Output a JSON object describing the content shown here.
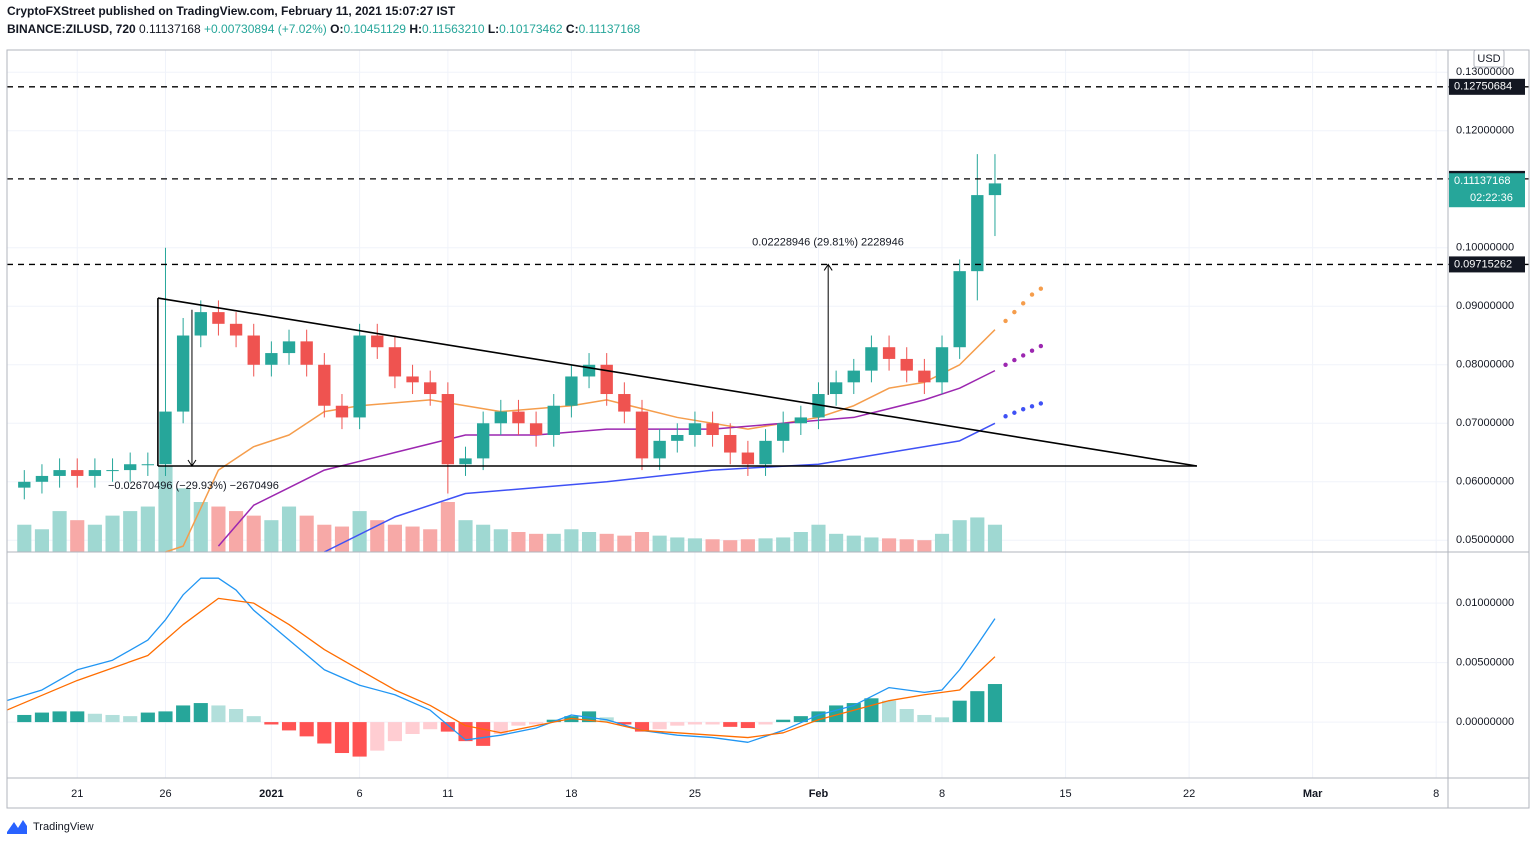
{
  "header": {
    "publisher": "CryptoFXStreet published on TradingView.com, February 11, 2021 15:07:27 IST",
    "symbol": "BINANCE:ZILUSD, 720",
    "last": "0.11137168",
    "change": "+0.00730894 (+7.02%)",
    "ohlc": [
      {
        "label": "O:",
        "value": "0.10451129"
      },
      {
        "label": "H:",
        "value": "0.11563210"
      },
      {
        "label": "L:",
        "value": "0.10173462"
      },
      {
        "label": "C:",
        "value": "0.11137168"
      }
    ]
  },
  "chart_data": [
    {
      "type": "candlestick",
      "currency": "USD",
      "up_color": "#26a69a",
      "down_color": "#ef5350",
      "x": [
        -3,
        -2,
        -1,
        0,
        1,
        2,
        3,
        4,
        5,
        6,
        7,
        8,
        9,
        10,
        11,
        12,
        13,
        14,
        15,
        16,
        17,
        18,
        19,
        20,
        21,
        22,
        23,
        24,
        25,
        26,
        27,
        28,
        29,
        30,
        31,
        32,
        33,
        34,
        35,
        36,
        37,
        38,
        39,
        40,
        41,
        42,
        43,
        44,
        45,
        46,
        47,
        48,
        49,
        50,
        51,
        52
      ],
      "open": [
        0.059,
        0.06,
        0.061,
        0.062,
        0.061,
        0.062,
        0.062,
        0.063,
        0.063,
        0.072,
        0.085,
        0.089,
        0.087,
        0.085,
        0.08,
        0.082,
        0.084,
        0.08,
        0.073,
        0.071,
        0.085,
        0.083,
        0.078,
        0.077,
        0.075,
        0.063,
        0.064,
        0.07,
        0.072,
        0.07,
        0.068,
        0.073,
        0.078,
        0.08,
        0.075,
        0.072,
        0.064,
        0.067,
        0.068,
        0.07,
        0.068,
        0.065,
        0.063,
        0.067,
        0.07,
        0.071,
        0.075,
        0.077,
        0.079,
        0.083,
        0.081,
        0.079,
        0.077,
        0.083,
        0.096,
        0.109
      ],
      "high": [
        0.062,
        0.063,
        0.064,
        0.064,
        0.064,
        0.064,
        0.065,
        0.065,
        0.1,
        0.088,
        0.091,
        0.091,
        0.089,
        0.087,
        0.084,
        0.086,
        0.086,
        0.082,
        0.075,
        0.087,
        0.087,
        0.085,
        0.08,
        0.079,
        0.077,
        0.066,
        0.072,
        0.074,
        0.074,
        0.072,
        0.075,
        0.08,
        0.082,
        0.082,
        0.077,
        0.074,
        0.069,
        0.07,
        0.072,
        0.072,
        0.07,
        0.067,
        0.069,
        0.072,
        0.073,
        0.077,
        0.079,
        0.081,
        0.085,
        0.085,
        0.083,
        0.081,
        0.085,
        0.098,
        0.116,
        0.116
      ],
      "low": [
        0.057,
        0.058,
        0.059,
        0.059,
        0.059,
        0.06,
        0.06,
        0.061,
        0.061,
        0.07,
        0.083,
        0.085,
        0.083,
        0.078,
        0.078,
        0.08,
        0.078,
        0.071,
        0.069,
        0.069,
        0.081,
        0.076,
        0.075,
        0.073,
        0.058,
        0.061,
        0.062,
        0.068,
        0.068,
        0.066,
        0.066,
        0.071,
        0.076,
        0.073,
        0.07,
        0.062,
        0.062,
        0.065,
        0.066,
        0.066,
        0.063,
        0.061,
        0.061,
        0.065,
        0.068,
        0.069,
        0.073,
        0.075,
        0.077,
        0.079,
        0.077,
        0.075,
        0.075,
        0.081,
        0.091,
        0.102
      ],
      "close": [
        0.06,
        0.061,
        0.062,
        0.061,
        0.062,
        0.062,
        0.063,
        0.063,
        0.072,
        0.085,
        0.089,
        0.087,
        0.085,
        0.08,
        0.082,
        0.084,
        0.08,
        0.073,
        0.071,
        0.085,
        0.083,
        0.078,
        0.077,
        0.075,
        0.063,
        0.064,
        0.07,
        0.072,
        0.07,
        0.068,
        0.073,
        0.078,
        0.08,
        0.075,
        0.072,
        0.064,
        0.067,
        0.068,
        0.07,
        0.068,
        0.065,
        0.063,
        0.067,
        0.07,
        0.071,
        0.075,
        0.077,
        0.079,
        0.083,
        0.081,
        0.079,
        0.077,
        0.083,
        0.096,
        0.109,
        0.111
      ],
      "volume": {
        "up_color": "#9fd8d2",
        "down_color": "#f7a9a7",
        "ylim": [
          0,
          110
        ],
        "values": [
          30,
          25,
          45,
          35,
          30,
          40,
          45,
          50,
          95,
          70,
          55,
          50,
          45,
          40,
          35,
          50,
          40,
          30,
          28,
          45,
          35,
          30,
          28,
          25,
          55,
          35,
          30,
          25,
          22,
          20,
          20,
          25,
          22,
          20,
          18,
          22,
          18,
          16,
          15,
          14,
          13,
          14,
          15,
          16,
          22,
          30,
          20,
          18,
          16,
          15,
          14,
          13,
          20,
          35,
          38,
          30
        ]
      },
      "moving_averages": [
        {
          "color": "#f59d4c",
          "x": [
            5,
            6,
            8,
            10,
            12,
            14,
            16,
            20,
            22,
            24,
            28,
            30,
            34,
            38,
            42,
            44,
            46,
            48,
            50,
            52
          ],
          "values": [
            0.048,
            0.049,
            0.062,
            0.066,
            0.068,
            0.072,
            0.073,
            0.074,
            0.073,
            0.072,
            0.073,
            0.074,
            0.071,
            0.069,
            0.071,
            0.073,
            0.076,
            0.077,
            0.08,
            0.086
          ]
        },
        {
          "color": "#9c27b0",
          "x": [
            8,
            10,
            12,
            14,
            18,
            22,
            26,
            30,
            36,
            40,
            44,
            48,
            50,
            52
          ],
          "values": [
            0.049,
            0.056,
            0.059,
            0.062,
            0.065,
            0.068,
            0.068,
            0.069,
            0.069,
            0.07,
            0.071,
            0.074,
            0.076,
            0.079
          ]
        },
        {
          "color": "#3f51f5",
          "x": [
            14,
            18,
            22,
            26,
            30,
            36,
            42,
            46,
            50,
            52
          ],
          "values": [
            0.048,
            0.054,
            0.058,
            0.059,
            0.06,
            0.062,
            0.063,
            0.065,
            0.067,
            0.07
          ]
        }
      ],
      "projections": [
        {
          "color": "#f59d4c",
          "x": [
            52.6,
            53.1,
            53.6,
            54.1,
            54.6
          ],
          "values": [
            0.0875,
            0.089,
            0.0905,
            0.092,
            0.093
          ]
        },
        {
          "color": "#9c27b0",
          "x": [
            52.6,
            53.1,
            53.6,
            54.1,
            54.6
          ],
          "values": [
            0.08,
            0.0808,
            0.0816,
            0.0824,
            0.0832
          ]
        },
        {
          "color": "#3f51f5",
          "x": [
            52.6,
            53.1,
            53.6,
            54.1,
            54.6
          ],
          "values": [
            0.0712,
            0.0718,
            0.0724,
            0.0729,
            0.0734
          ]
        }
      ],
      "levels": [
        0.12750684,
        0.11177015,
        0.09715262
      ],
      "last_price": 0.11137168,
      "countdown": "02:22:36",
      "drawings": [
        {
          "x": [
            4.57,
            63.44
          ],
          "values": [
            0.0914,
            0.0627
          ]
        },
        {
          "x": [
            4.57,
            63.44
          ],
          "values": [
            0.0627,
            0.0627
          ]
        },
        {
          "x": [
            4.57,
            4.57
          ],
          "values": [
            0.0627,
            0.0914
          ]
        }
      ],
      "measures": [
        {
          "text": "0.02228946 (29.81%) 2228946",
          "x": 42.55,
          "from": 0.07486262,
          "to": 0.09715262
        },
        {
          "text": "−0.02670496 (−29.93%) −2670496",
          "x": 6.5,
          "from": 0.08940496,
          "to": 0.0627
        }
      ],
      "xlim": [
        -3.98,
        77.67
      ],
      "ylim": [
        0.048,
        0.1338
      ],
      "yticks": [
        {
          "value": 0.05,
          "label": "0.05000000"
        },
        {
          "value": 0.06,
          "label": "0.06000000"
        },
        {
          "value": 0.07,
          "label": "0.07000000"
        },
        {
          "value": 0.08,
          "label": "0.08000000"
        },
        {
          "value": 0.09,
          "label": "0.09000000"
        },
        {
          "value": 0.1,
          "label": "0.10000000"
        },
        {
          "value": 0.12,
          "label": "0.12000000"
        },
        {
          "value": 0.13,
          "label": "0.13000000"
        }
      ],
      "grid": true
    },
    {
      "type": "macd",
      "up_color": "#26a69a",
      "up_fade": "#b2dfdb",
      "down_color": "#ff5252",
      "down_fade": "#ffcdd2",
      "x": [
        -3,
        -2,
        -1,
        0,
        1,
        2,
        3,
        4,
        5,
        6,
        7,
        8,
        9,
        10,
        11,
        12,
        13,
        14,
        15,
        16,
        17,
        18,
        19,
        20,
        21,
        22,
        23,
        24,
        25,
        26,
        27,
        28,
        29,
        30,
        31,
        32,
        33,
        34,
        35,
        36,
        37,
        38,
        39,
        40,
        41,
        42,
        43,
        44,
        45,
        46,
        47,
        48,
        49,
        50,
        51,
        52
      ],
      "histogram": [
        0.0006,
        0.0008,
        0.0009,
        0.0009,
        0.0007,
        0.0006,
        0.0005,
        0.0008,
        0.0009,
        0.0014,
        0.0016,
        0.0014,
        0.0011,
        0.0005,
        -0.0002,
        -0.0007,
        -0.0012,
        -0.0018,
        -0.0026,
        -0.0029,
        -0.0024,
        -0.0016,
        -0.001,
        -0.0006,
        -0.0008,
        -0.0016,
        -0.002,
        -0.001,
        -0.0003,
        -0.0002,
        0.0002,
        0.0005,
        0.0009,
        0.0004,
        -0.0002,
        -0.0008,
        -0.0006,
        -0.0003,
        -0.0002,
        -0.0002,
        -0.0004,
        -0.0005,
        -0.0002,
        0.0002,
        0.0005,
        0.0009,
        0.0014,
        0.0016,
        0.002,
        0.0018,
        0.0011,
        0.0006,
        0.0004,
        0.0018,
        0.0026,
        0.0032
      ],
      "lines": [
        {
          "color": "#2196f3",
          "x": [
            -4,
            -2,
            0,
            2,
            4,
            5,
            6,
            7,
            8,
            9,
            10,
            12,
            14,
            16,
            18,
            20,
            22,
            24,
            26,
            28,
            30,
            32,
            34,
            36,
            38,
            40,
            42,
            44,
            46,
            48,
            49,
            50,
            51,
            52
          ],
          "values": [
            0.0018,
            0.0027,
            0.0044,
            0.0052,
            0.0069,
            0.0086,
            0.0107,
            0.0121,
            0.0121,
            0.0111,
            0.0094,
            0.0069,
            0.0044,
            0.0031,
            0.0023,
            0.001,
            -0.0015,
            -0.0011,
            -0.0005,
            0.0006,
            0.0002,
            -0.0007,
            -0.0011,
            -0.0013,
            -0.0017,
            -0.0007,
            0.0006,
            0.0014,
            0.0029,
            0.0025,
            0.0027,
            0.0044,
            0.0065,
            0.0087
          ]
        },
        {
          "color": "#ff6d00",
          "x": [
            -4,
            0,
            4,
            6,
            8,
            10,
            12,
            14,
            16,
            18,
            20,
            22,
            24,
            26,
            28,
            30,
            32,
            34,
            36,
            38,
            40,
            42,
            44,
            46,
            48,
            50,
            52
          ],
          "values": [
            0.001,
            0.0035,
            0.0056,
            0.0082,
            0.0104,
            0.01,
            0.0082,
            0.0061,
            0.0044,
            0.0027,
            0.0014,
            -0.0003,
            -0.0009,
            -0.0003,
            0.0003,
            0.0,
            -0.0007,
            -0.0009,
            -0.0011,
            -0.0013,
            -0.0009,
            0.0002,
            0.001,
            0.0018,
            0.0023,
            0.0027,
            0.0055
          ]
        }
      ],
      "xlim": [
        -3.98,
        77.67
      ],
      "ylim": [
        -0.0047,
        0.0143
      ],
      "yticks": [
        {
          "value": 0,
          "label": "0.00000000"
        },
        {
          "value": 0.005,
          "label": "0.00500000"
        },
        {
          "value": 0.01,
          "label": "0.01000000"
        }
      ],
      "xticks": [
        {
          "value": 0,
          "label": "21"
        },
        {
          "value": 5,
          "label": "26"
        },
        {
          "value": 11,
          "label": "2021"
        },
        {
          "value": 16,
          "label": "6"
        },
        {
          "value": 21,
          "label": "11"
        },
        {
          "value": 28,
          "label": "18"
        },
        {
          "value": 35,
          "label": "25"
        },
        {
          "value": 42,
          "label": "Feb"
        },
        {
          "value": 49,
          "label": "8"
        },
        {
          "value": 56,
          "label": "15"
        },
        {
          "value": 63,
          "label": "22"
        },
        {
          "value": 70,
          "label": "Mar"
        },
        {
          "value": 77,
          "label": "8"
        }
      ],
      "grid": true
    }
  ],
  "footer": {
    "brand": "TradingView"
  }
}
